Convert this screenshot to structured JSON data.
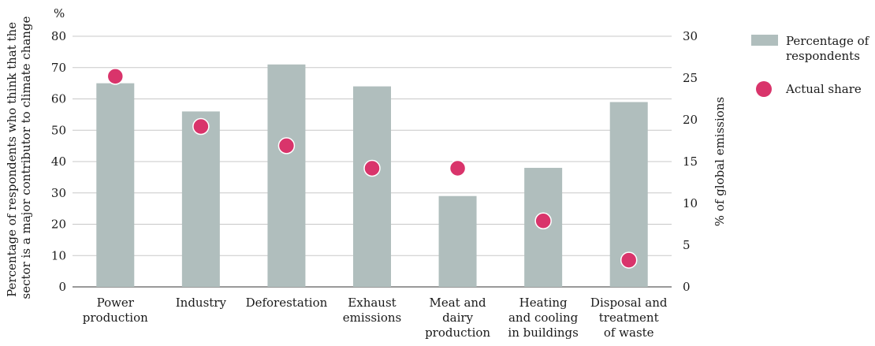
{
  "chart_data": {
    "type": "bar",
    "categories": [
      [
        "Power",
        "production"
      ],
      [
        "Industry"
      ],
      [
        "Deforestation"
      ],
      [
        "Exhaust",
        "emissions"
      ],
      [
        "Meat and",
        "dairy",
        "production"
      ],
      [
        "Heating",
        "and cooling",
        "in buildings"
      ],
      [
        "Disposal and",
        "treatment",
        "of waste"
      ]
    ],
    "left_axis": {
      "unit_label": "%",
      "title_lines": [
        "Percentage of respondents who think that the",
        "sector is a major contributor to climate change"
      ],
      "ylim": [
        0,
        80
      ],
      "ticks": [
        0,
        10,
        20,
        30,
        40,
        50,
        60,
        70,
        80
      ]
    },
    "right_axis": {
      "title": "% of global emissions",
      "ylim": [
        0,
        30
      ],
      "ticks": [
        0,
        5,
        10,
        15,
        20,
        25,
        30
      ]
    },
    "series": [
      {
        "name": "Percentage of respondents",
        "type": "bar",
        "axis": "left",
        "color": "#b0bebd",
        "values": [
          65,
          56,
          71,
          64,
          29,
          38,
          59
        ]
      },
      {
        "name": "Actual share",
        "type": "scatter",
        "axis": "right",
        "color": "#d9346b",
        "values": [
          25.2,
          19.2,
          16.9,
          14.2,
          14.2,
          7.9,
          3.2
        ]
      }
    ],
    "grid": true,
    "legend": {
      "placement": "right",
      "entries": [
        {
          "lines": [
            "Percentage of",
            "respondents"
          ],
          "color": "#b0bebd",
          "shape": "rect"
        },
        {
          "lines": [
            "Actual share"
          ],
          "color": "#d9346b",
          "shape": "circle"
        }
      ]
    }
  }
}
